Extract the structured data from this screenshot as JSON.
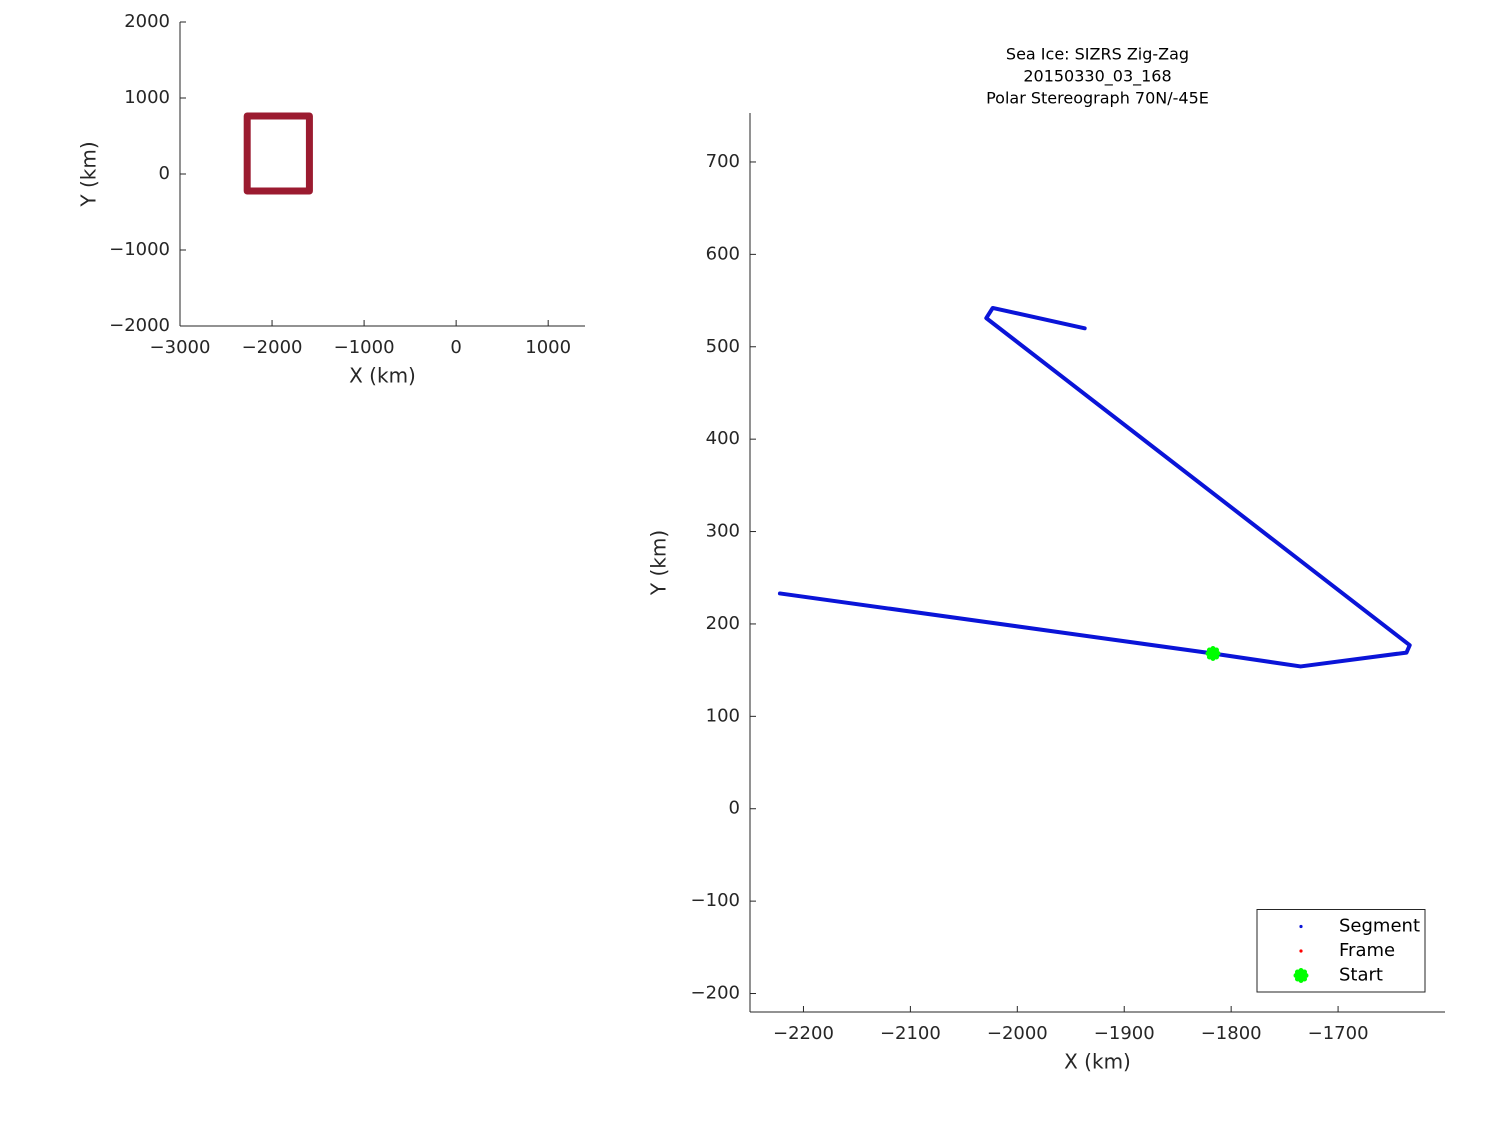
{
  "chart_data": [
    {
      "type": "line",
      "xlabel": "X (km)",
      "ylabel": "Y (km)",
      "xlim": [
        -3000,
        1400
      ],
      "ylim": [
        -2000,
        2000
      ],
      "xticks": [
        {
          "value": -3000,
          "label": "−3000"
        },
        {
          "value": -2000,
          "label": "−2000"
        },
        {
          "value": -1000,
          "label": "−1000"
        },
        0,
        1000
      ],
      "yticks": [
        {
          "value": -2000,
          "label": "−2000"
        },
        {
          "value": -1000,
          "label": "−1000"
        },
        0,
        1000,
        2000
      ],
      "series": [
        {
          "color": "#9b1b30",
          "mode": "lines",
          "x": [
            -2270,
            -1594,
            -1594,
            -2270,
            -2270
          ],
          "y": [
            763,
            763,
            -224,
            -224,
            763
          ]
        }
      ]
    },
    {
      "type": "line",
      "title": [
        "Sea Ice: SIZRS Zig-Zag",
        "20150330_03_168",
        "Polar Stereograph 70N/-45E"
      ],
      "xlabel": "X (km)",
      "ylabel": "Y (km)",
      "xlim": [
        -2250,
        -1600
      ],
      "ylim": [
        -220,
        753
      ],
      "xticks": [
        {
          "value": -2200,
          "label": "−2200"
        },
        {
          "value": -2100,
          "label": "−2100"
        },
        {
          "value": -2000,
          "label": "−2000"
        },
        {
          "value": -1900,
          "label": "−1900"
        },
        {
          "value": -1800,
          "label": "−1800"
        },
        {
          "value": -1700,
          "label": "−1700"
        }
      ],
      "yticks": [
        {
          "value": -200,
          "label": "−200"
        },
        {
          "value": -100,
          "label": "−100"
        },
        0,
        100,
        200,
        300,
        400,
        500,
        600,
        700
      ],
      "legend": "lower right",
      "series": [
        {
          "name": "Segment",
          "color": "#0a14d8",
          "mode": "lines",
          "x": [
            -2222,
            -1817,
            -1735,
            -1636,
            -1633,
            -2029,
            -2023,
            -1937
          ],
          "y": [
            233,
            168,
            154,
            169,
            177,
            531,
            542,
            520
          ]
        },
        {
          "name": "Frame",
          "color": "#ff0000",
          "mode": "markers",
          "x": [],
          "y": []
        },
        {
          "name": "Start",
          "color": "#00ff00",
          "mode": "markers",
          "x": [
            -1817
          ],
          "y": [
            168
          ]
        }
      ]
    }
  ]
}
